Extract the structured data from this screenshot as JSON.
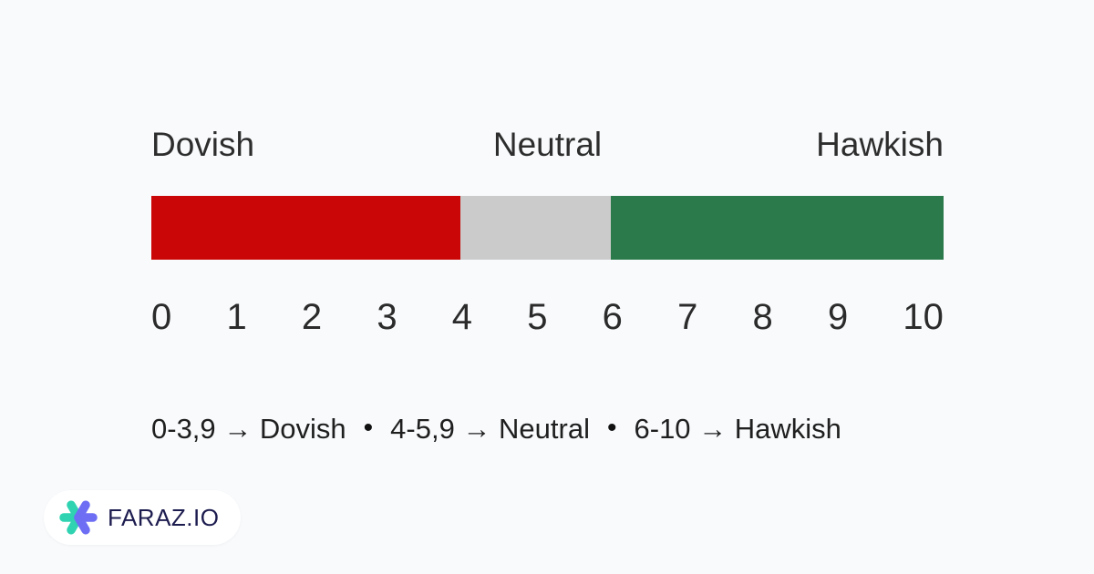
{
  "canvas": {
    "background": "#f8fafc"
  },
  "scale": {
    "labels": [
      "Dovish",
      "Neutral",
      "Hawkish"
    ],
    "ticks": [
      "0",
      "1",
      "2",
      "3",
      "4",
      "5",
      "6",
      "7",
      "8",
      "9",
      "10"
    ]
  },
  "legend": {
    "bullet": "•",
    "items": [
      {
        "text": "0-3,9 → Dovish"
      },
      {
        "text": "4-5,9 → Neutral"
      },
      {
        "text": "6-10 → Hawkish"
      }
    ]
  },
  "logo": {
    "text": "FARAZ.IO",
    "teal": "#2fd3b1",
    "purple": "#6d6ef4",
    "text_color": "#1d1c4f"
  },
  "chart_data": {
    "type": "bar",
    "orientation": "horizontal_stacked_scale",
    "title": "",
    "axis": {
      "min": 0,
      "max": 10,
      "ticks": [
        0,
        1,
        2,
        3,
        4,
        5,
        6,
        7,
        8,
        9,
        10
      ]
    },
    "segments": [
      {
        "label": "Dovish",
        "range": [
          0,
          3.9
        ],
        "color": "#cb0606",
        "width_pct": 39
      },
      {
        "label": "Neutral",
        "range": [
          4,
          5.9
        ],
        "color": "#cbcbcb",
        "width_pct": 19
      },
      {
        "label": "Hawkish",
        "range": [
          6,
          10
        ],
        "color": "#2b7a4b",
        "width_pct": 42
      }
    ],
    "legend_position": "bottom",
    "grid": false
  }
}
